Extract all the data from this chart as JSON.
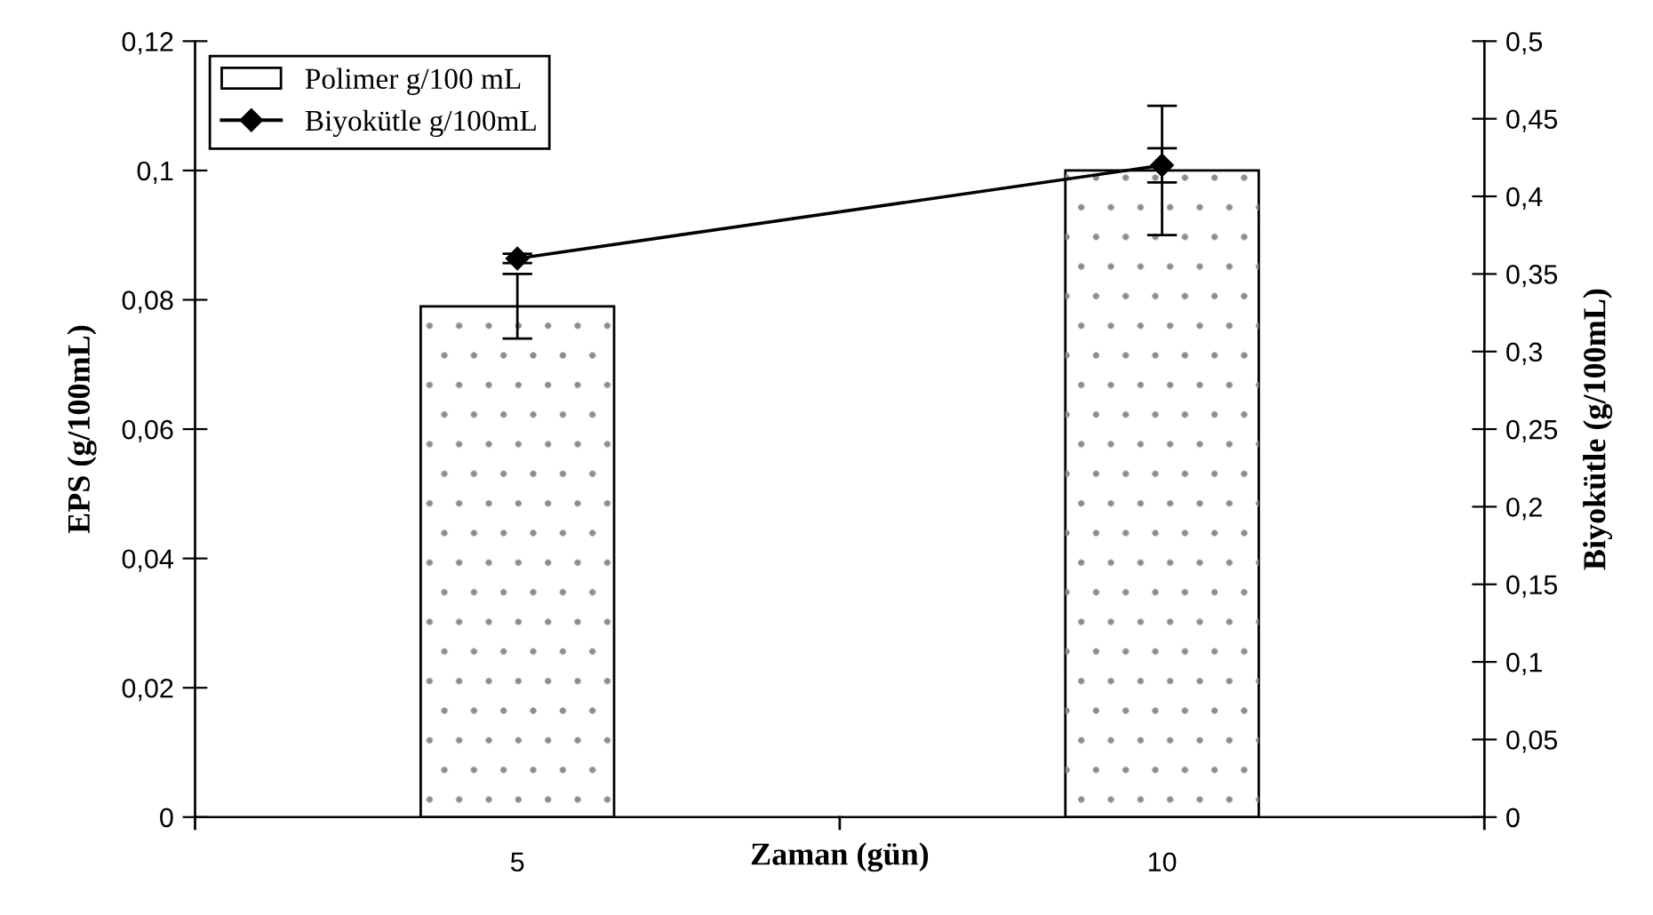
{
  "chart_data": {
    "type": "bar",
    "xlabel": "Zaman (gün)",
    "ylabel": "EPS (g/100mL)",
    "y2label": "Biyokütle (g/100mL)",
    "categories": [
      "5",
      "10"
    ],
    "series": [
      {
        "name": "Polimer g/100 mL",
        "type": "bar",
        "color": "#ffffff",
        "values": [
          0.079,
          0.1
        ],
        "errors": [
          0.005,
          0.01
        ]
      },
      {
        "name": "Biyokütle g/100mL",
        "type": "line",
        "axis": "y2",
        "color": "#000000",
        "marker": "diamond",
        "values": [
          0.36,
          0.42
        ],
        "errors": [
          0.003,
          0.011
        ]
      }
    ],
    "ylim": [
      0,
      0.12
    ],
    "yticks": [
      {
        "value": 0,
        "label": "0"
      },
      {
        "value": 0.02,
        "label": "0,02"
      },
      {
        "value": 0.04,
        "label": "0,04"
      },
      {
        "value": 0.06,
        "label": "0,06"
      },
      {
        "value": 0.08,
        "label": "0,08"
      },
      {
        "value": 0.1,
        "label": "0,1"
      },
      {
        "value": 0.12,
        "label": "0,12"
      }
    ],
    "y2lim": [
      0,
      0.5
    ],
    "y2ticks": [
      {
        "value": 0,
        "label": "0"
      },
      {
        "value": 0.05,
        "label": "0,05"
      },
      {
        "value": 0.1,
        "label": "0,1"
      },
      {
        "value": 0.15,
        "label": "0,15"
      },
      {
        "value": 0.2,
        "label": "0,2"
      },
      {
        "value": 0.25,
        "label": "0,25"
      },
      {
        "value": 0.3,
        "label": "0,3"
      },
      {
        "value": 0.35,
        "label": "0,35"
      },
      {
        "value": 0.4,
        "label": "0,4"
      },
      {
        "value": 0.45,
        "label": "0,45"
      },
      {
        "value": 0.5,
        "label": "0,5"
      }
    ],
    "legend": "top left",
    "grid": false
  }
}
